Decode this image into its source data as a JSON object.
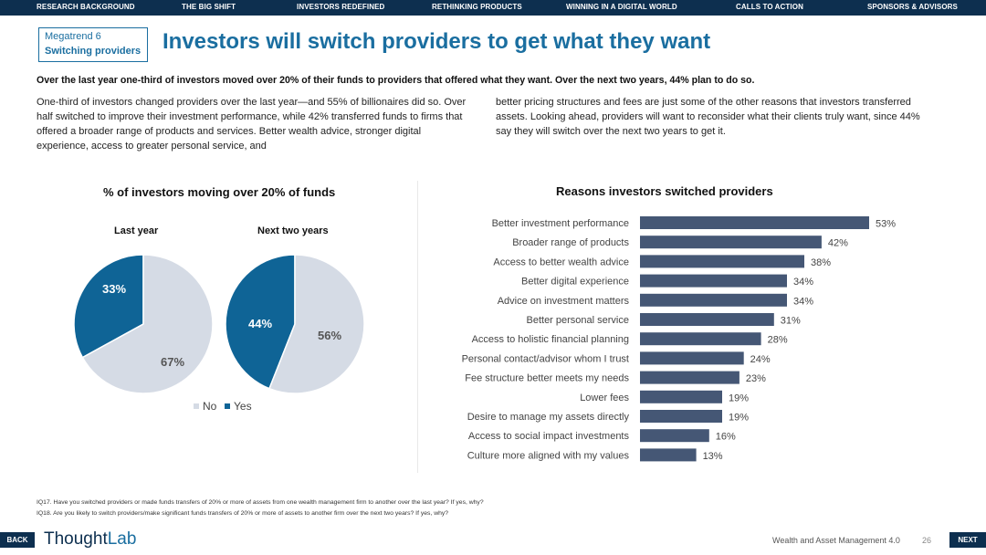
{
  "nav": {
    "items": [
      "RESEARCH BACKGROUND",
      "THE BIG SHIFT",
      "INVESTORS REDEFINED",
      "RETHINKING PRODUCTS",
      "WINNING IN A DIGITAL WORLD",
      "CALLS TO ACTION",
      "SPONSORS & ADVISORS"
    ]
  },
  "megatrend": {
    "label": "Megatrend 6",
    "topic": "Switching providers"
  },
  "page_title": "Investors will switch providers to get what they want",
  "subhead": "Over the last year one-third of investors moved over 20% of their funds to providers that offered what they want. Over the next two years, 44% plan to do so.",
  "body": {
    "left": "One-third of investors changed providers over the last year—and 55% of billionaires did so. Over half switched to improve their investment performance, while 42% transferred funds to firms that offered a broader range of products and services. Better wealth advice, stronger digital experience, access to greater personal service, and",
    "right": "better pricing structures and fees are just some of the other reasons that investors transferred assets. Looking ahead, providers will want to reconsider what their clients truly want, since 44% say they will switch over the next two years to get it."
  },
  "colors": {
    "yes": "#0f6496",
    "no": "#d5dbe5",
    "bar": "#455775",
    "nav": "#0d2f4f",
    "accent": "#1a6ea0"
  },
  "chart_data": [
    {
      "type": "pie",
      "title": "% of investors moving over 20% of funds",
      "legend": [
        "No",
        "Yes"
      ],
      "pies": [
        {
          "label": "Last year",
          "slices": [
            {
              "name": "Yes",
              "value": 33,
              "display": "33%"
            },
            {
              "name": "No",
              "value": 67,
              "display": "67%"
            }
          ]
        },
        {
          "label": "Next two years",
          "slices": [
            {
              "name": "Yes",
              "value": 44,
              "display": "44%"
            },
            {
              "name": "No",
              "value": 56,
              "display": "56%"
            }
          ]
        }
      ]
    },
    {
      "type": "bar",
      "orientation": "horizontal",
      "title": "Reasons investors switched providers",
      "xlim": [
        0,
        55
      ],
      "categories": [
        "Better investment performance",
        "Broader range of products",
        "Access to better wealth advice",
        "Better digital experience",
        "Advice on investment matters",
        "Better personal service",
        "Access to holistic financial planning",
        "Personal contact/advisor whom I trust",
        "Fee structure better meets my needs",
        "Lower fees",
        "Desire to manage my assets directly",
        "Access to social impact investments",
        "Culture more aligned with my values"
      ],
      "values": [
        53,
        42,
        38,
        34,
        34,
        31,
        28,
        24,
        23,
        19,
        19,
        16,
        13
      ],
      "labels": [
        "53%",
        "42%",
        "38%",
        "34%",
        "34%",
        "31%",
        "28%",
        "24%",
        "23%",
        "19%",
        "19%",
        "16%",
        "13%"
      ]
    }
  ],
  "footnotes": [
    "IQ17. Have you switched providers or made funds transfers of 20% or more of assets from one wealth management firm to another over the last year? If yes, why?",
    "IQ18. Are you likely to switch providers/make significant funds transfers of 20% or more of assets to another firm over the next two years? If yes, why?"
  ],
  "footer": {
    "back": "BACK",
    "next": "NEXT",
    "logo_a": "Thought",
    "logo_b": "Lab",
    "report": "Wealth and Asset Management 4.0",
    "page": "26"
  }
}
